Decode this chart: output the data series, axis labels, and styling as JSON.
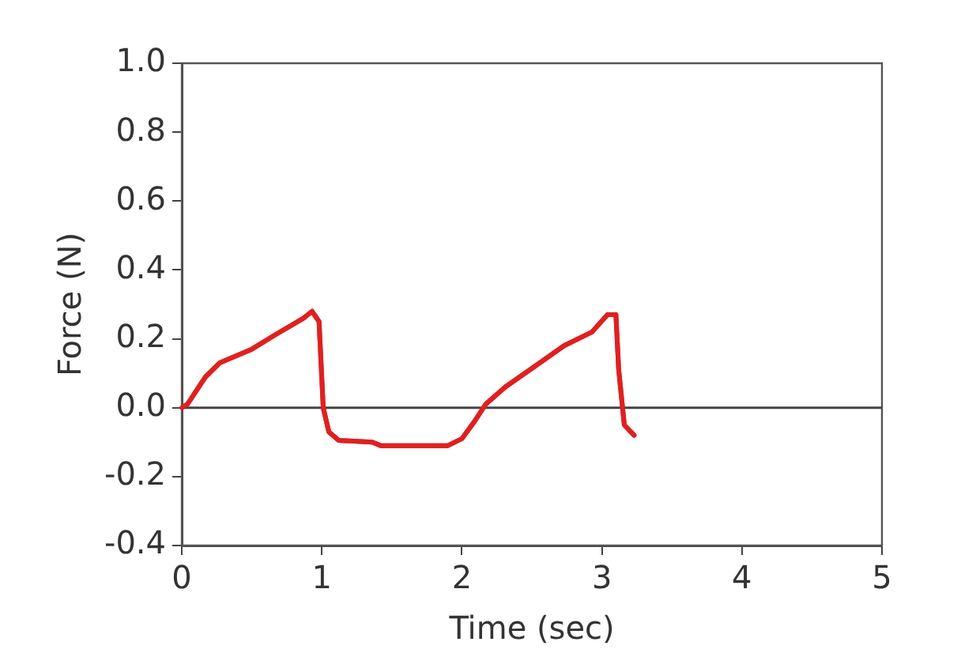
{
  "chart_data": {
    "type": "line",
    "xlabel": "Time (sec)",
    "ylabel": "Force (N)",
    "xlim": [
      0,
      5
    ],
    "xticks": [
      0,
      1,
      2,
      3,
      4,
      5
    ],
    "ylim": [
      -0.4,
      1.0
    ],
    "yticks": [
      {
        "value": -0.4,
        "label": "-0.4"
      },
      {
        "value": -0.2,
        "label": "-0.2"
      },
      {
        "value": 0,
        "label": "0.0"
      },
      {
        "value": 0.2,
        "label": "0.2"
      },
      {
        "value": 0.4,
        "label": "0.4"
      },
      {
        "value": 0.6,
        "label": "0.6"
      },
      {
        "value": 0.8,
        "label": "0.8"
      },
      {
        "value": 1.0,
        "label": "1.0"
      }
    ],
    "grid": false,
    "legend": false,
    "marker": "none",
    "line_style": "solid",
    "ref_lines": [
      {
        "axis": "y",
        "value": 0,
        "color": "#444444",
        "line_style": "solid"
      }
    ],
    "series": [
      {
        "color": "#e02020",
        "x": [
          0,
          0.04,
          0.17,
          0.27,
          0.5,
          0.66,
          0.87,
          0.93,
          0.98,
          1.01,
          1.05,
          1.12,
          1.36,
          1.42,
          1.9,
          2.0,
          2.09,
          2.17,
          2.31,
          2.52,
          2.73,
          2.93,
          3.04,
          3.1,
          3.12,
          3.16,
          3.23
        ],
        "values": [
          0,
          0.01,
          0.09,
          0.13,
          0.17,
          0.21,
          0.26,
          0.28,
          0.25,
          0,
          -0.07,
          -0.095,
          -0.1,
          -0.11,
          -0.11,
          -0.09,
          -0.04,
          0.01,
          0.06,
          0.12,
          0.18,
          0.22,
          0.27,
          0.27,
          0.11,
          -0.05,
          -0.08
        ]
      }
    ]
  }
}
